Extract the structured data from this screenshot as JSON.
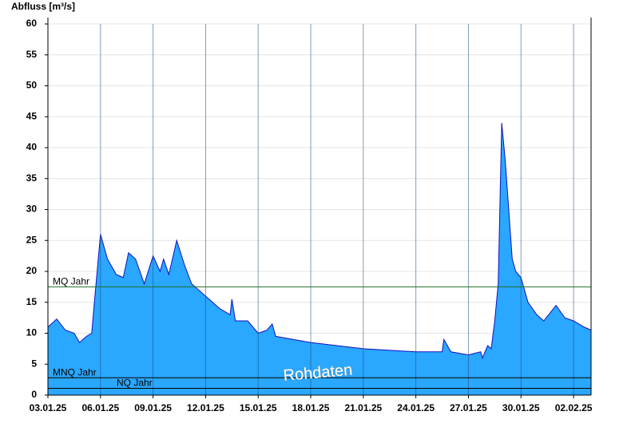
{
  "chart_data": {
    "type": "area",
    "y_label": "Abfluss [m³/s]",
    "watermark": "Rohdaten",
    "color": "#2aa7ff",
    "line_color": "#1010c0",
    "x": [
      0,
      0.5,
      1,
      1.5,
      1.8,
      2.2,
      2.5,
      2.65,
      3.0,
      3.4,
      3.9,
      4.3,
      4.6,
      5.0,
      5.5,
      6.0,
      6.4,
      6.6,
      6.9,
      7.35,
      7.8,
      8.2,
      9.0,
      9.8,
      10.4,
      10.5,
      10.7,
      11.4,
      12.0,
      12.5,
      12.8,
      13.0,
      15.0,
      18.0,
      21.0,
      22.5,
      22.6,
      23.0,
      24.0,
      24.7,
      24.8,
      25.1,
      25.3,
      25.5,
      25.7,
      25.9,
      26.1,
      26.5,
      26.7,
      27.0,
      27.4,
      27.9,
      28.3,
      29.0,
      29.5,
      30.0,
      30.6,
      31.0
    ],
    "values": [
      11,
      12.3,
      10.5,
      10,
      8.5,
      9.5,
      10,
      15,
      26,
      22,
      19.5,
      19,
      23,
      22,
      18,
      22.5,
      20,
      22,
      19.5,
      25,
      21,
      18,
      16,
      14,
      13,
      15.5,
      12,
      12,
      10,
      10.5,
      11.5,
      9.5,
      8.5,
      7.5,
      7,
      7,
      9,
      7,
      6.5,
      7,
      6,
      8,
      7.5,
      12,
      18,
      44,
      38,
      22,
      20,
      19,
      15,
      13,
      12,
      14.5,
      12.5,
      12,
      11,
      10.5
    ],
    "references": [
      {
        "name": "MQ Jahr",
        "value": 17.5,
        "color": "#207020"
      },
      {
        "name": "MNQ Jahr",
        "value": 2.8,
        "color": "#000000"
      },
      {
        "name": "NQ Jahr",
        "value": 1.1,
        "color": "#000000"
      }
    ],
    "xlim": [
      0,
      31
    ],
    "xticks": [
      {
        "value": 0,
        "label": "03.01.25"
      },
      {
        "value": 3,
        "label": "06.01.25"
      },
      {
        "value": 6,
        "label": "09.01.25"
      },
      {
        "value": 9,
        "label": "12.01.25"
      },
      {
        "value": 12,
        "label": "15.01.25"
      },
      {
        "value": 15,
        "label": "18.01.25"
      },
      {
        "value": 18,
        "label": "21.01.25"
      },
      {
        "value": 21,
        "label": "24.01.25"
      },
      {
        "value": 24,
        "label": "27.01.25"
      },
      {
        "value": 27,
        "label": "30.01.25"
      },
      {
        "value": 30,
        "label": "02.02.25"
      }
    ],
    "ylim": [
      0,
      60
    ],
    "yticks": [
      0,
      5,
      10,
      15,
      20,
      25,
      30,
      35,
      40,
      45,
      50,
      55,
      60
    ],
    "grid": true
  }
}
